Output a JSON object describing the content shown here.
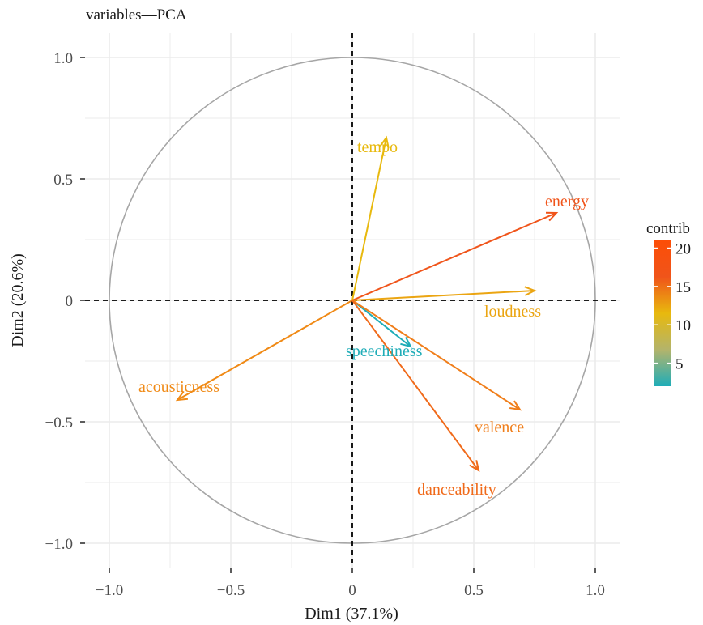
{
  "chart_data": {
    "type": "scatter",
    "subtype": "pca-variable-correlation-circle",
    "title": "variables—PCA",
    "xlabel": "Dim1 (37.1%)",
    "ylabel": "Dim2 (20.6%)",
    "xlim": [
      -1.1,
      1.1
    ],
    "ylim": [
      -1.1,
      1.1
    ],
    "x_ticks": [
      {
        "value": -1.0,
        "label": "−1.0"
      },
      {
        "value": -0.5,
        "label": "−0.5"
      },
      {
        "value": 0,
        "label": "0"
      },
      {
        "value": 0.5,
        "label": "0.5"
      },
      {
        "value": 1.0,
        "label": "1.0"
      }
    ],
    "y_ticks": [
      {
        "value": 1.0,
        "label": "1.0"
      },
      {
        "value": 0.5,
        "label": "0.5"
      },
      {
        "value": 0,
        "label": "0"
      },
      {
        "value": -0.5,
        "label": "−0.5"
      },
      {
        "value": -1.0,
        "label": "−1.0"
      }
    ],
    "grid": true,
    "variables": [
      {
        "name": "tempo",
        "x": 0.14,
        "y": 0.67,
        "contrib": 14.0,
        "color": "#E8B90E"
      },
      {
        "name": "energy",
        "x": 0.84,
        "y": 0.36,
        "contrib": 20.5,
        "color": "#F0541A"
      },
      {
        "name": "loudness",
        "x": 0.75,
        "y": 0.04,
        "contrib": 13.5,
        "color": "#EBA512"
      },
      {
        "name": "speechiness",
        "x": 0.24,
        "y": -0.19,
        "contrib": 3.5,
        "color": "#1FADB8"
      },
      {
        "name": "acousticness",
        "x": -0.72,
        "y": -0.41,
        "contrib": 15.5,
        "color": "#F08A16"
      },
      {
        "name": "valence",
        "x": 0.69,
        "y": -0.45,
        "contrib": 17.5,
        "color": "#F07E1A"
      },
      {
        "name": "danceability",
        "x": 0.52,
        "y": -0.7,
        "contrib": 18.0,
        "color": "#F06A1A"
      }
    ],
    "legend": {
      "title": "contrib",
      "position": "right",
      "range": [
        2,
        21
      ],
      "ticks": [
        {
          "value": 20,
          "label": "20"
        },
        {
          "value": 15,
          "label": "15"
        },
        {
          "value": 10,
          "label": "10"
        },
        {
          "value": 5,
          "label": "5"
        }
      ],
      "gradient_colors": [
        "#1FADB8",
        "#B3B46B",
        "#E8B90E",
        "#F0541A",
        "#FC4E07"
      ]
    }
  }
}
